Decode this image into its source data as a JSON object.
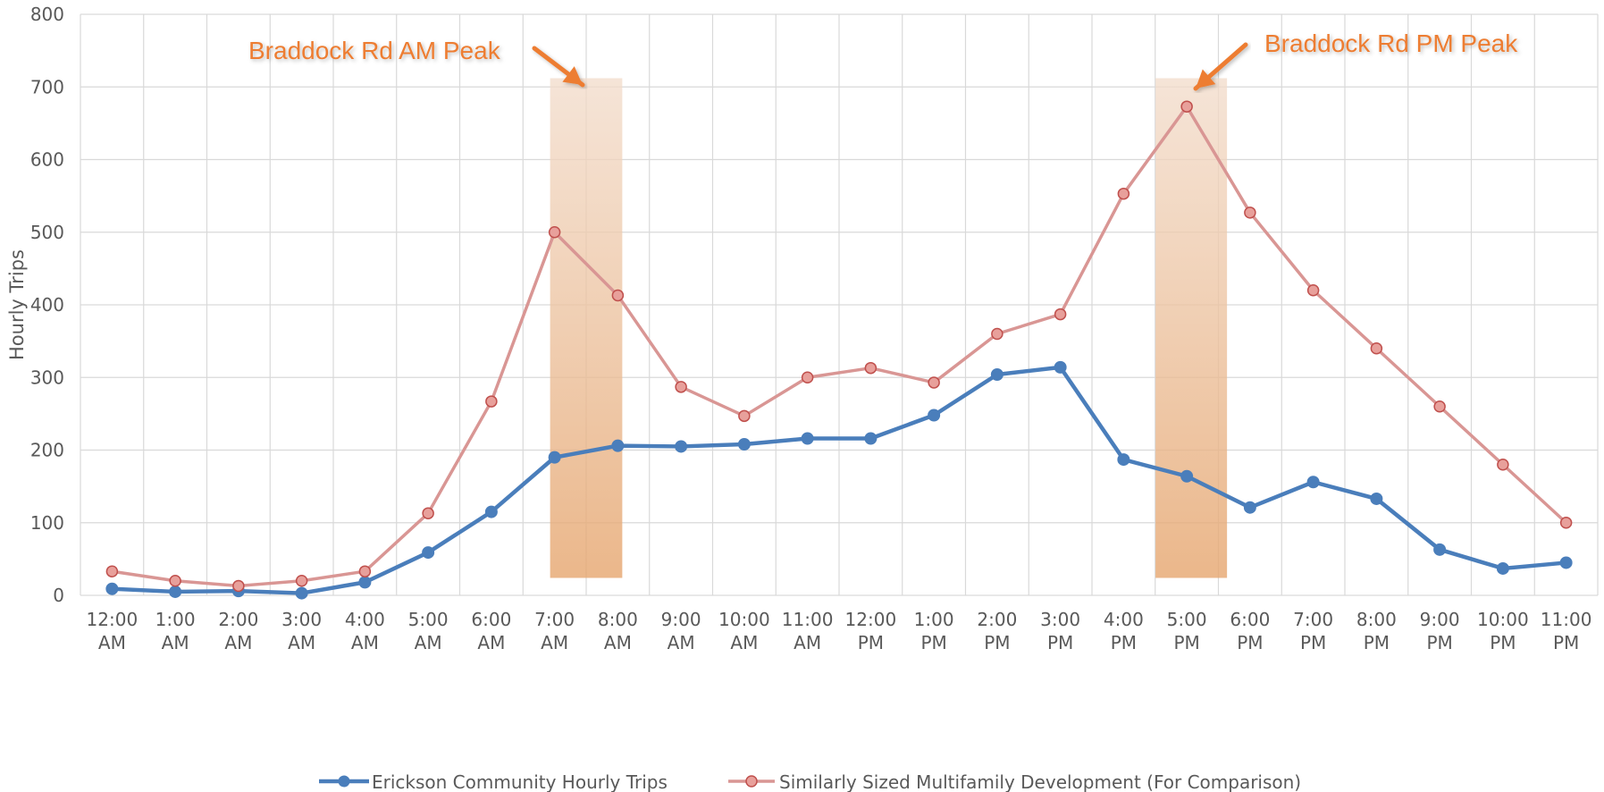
{
  "chart_data": {
    "type": "line",
    "title": "",
    "xlabel": "",
    "ylabel": "Hourly Trips",
    "ylim": [
      0,
      800
    ],
    "yticks": [
      "0",
      "100",
      "200",
      "300",
      "400",
      "500",
      "600",
      "700",
      "800"
    ],
    "grid": true,
    "legend_position": "bottom",
    "categories": [
      [
        "12:00",
        "AM"
      ],
      [
        "1:00",
        "AM"
      ],
      [
        "2:00",
        "AM"
      ],
      [
        "3:00",
        "AM"
      ],
      [
        "4:00",
        "AM"
      ],
      [
        "5:00",
        "AM"
      ],
      [
        "6:00",
        "AM"
      ],
      [
        "7:00",
        "AM"
      ],
      [
        "8:00",
        "AM"
      ],
      [
        "9:00",
        "AM"
      ],
      [
        "10:00",
        "AM"
      ],
      [
        "11:00",
        "AM"
      ],
      [
        "12:00",
        "PM"
      ],
      [
        "1:00",
        "PM"
      ],
      [
        "2:00",
        "PM"
      ],
      [
        "3:00",
        "PM"
      ],
      [
        "4:00",
        "PM"
      ],
      [
        "5:00",
        "PM"
      ],
      [
        "6:00",
        "PM"
      ],
      [
        "7:00",
        "PM"
      ],
      [
        "8:00",
        "PM"
      ],
      [
        "9:00",
        "PM"
      ],
      [
        "10:00",
        "PM"
      ],
      [
        "11:00",
        "PM"
      ]
    ],
    "series": [
      {
        "name": "Erickson Community Hourly Trips",
        "color": "#4A7EBB",
        "marker": "filled-circle",
        "values": [
          9,
          5,
          6,
          3,
          18,
          59,
          115,
          190,
          206,
          205,
          208,
          216,
          216,
          248,
          304,
          314,
          187,
          164,
          121,
          156,
          133,
          63,
          37,
          45
        ]
      },
      {
        "name": "Similarly Sized Multifamily Development (For Comparison)",
        "color": "#D99694",
        "marker_fill": "#E8A09B",
        "marker_stroke": "#C0504D",
        "marker": "outlined-circle",
        "values": [
          33,
          20,
          13,
          20,
          33,
          113,
          267,
          500,
          413,
          287,
          247,
          300,
          313,
          293,
          360,
          387,
          553,
          673,
          527,
          420,
          340,
          260,
          180,
          100
        ]
      }
    ],
    "annotations": [
      {
        "text": "Braddock Rd AM Peak",
        "highlight_from": "7:00 AM",
        "highlight_to": "8:00 AM",
        "color": "#ED7D31"
      },
      {
        "text": "Braddock Rd PM Peak",
        "highlight_at": "5:00 PM",
        "color": "#ED7D31"
      }
    ]
  }
}
